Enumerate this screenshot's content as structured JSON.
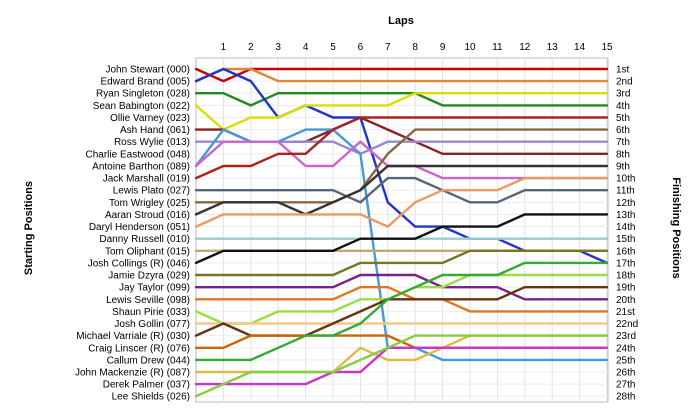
{
  "chart_data": {
    "type": "line",
    "title": "",
    "top_axis_label": "Laps",
    "left_axis_label": "Starting Positions",
    "right_axis_label": "Finishing Positions",
    "x": [
      0,
      1,
      2,
      3,
      4,
      5,
      6,
      7,
      8,
      9,
      10,
      11,
      12,
      13,
      14,
      15
    ],
    "x_tick_labels": [
      "1",
      "2",
      "3",
      "4",
      "5",
      "6",
      "7",
      "8",
      "9",
      "10",
      "11",
      "12",
      "13",
      "14",
      "15"
    ],
    "y_inverted": true,
    "ylim": [
      1,
      28
    ],
    "grid": true,
    "start_labels": [
      "John Stewart (000)",
      "Edward Brand (005)",
      "Ryan Singleton (028)",
      "Sean Babington (022)",
      "Ollie Varney (023)",
      "Ash Hand (061)",
      "Ross Wylie (013)",
      "Charlie Eastwood (048)",
      "Antoine Barthon (089)",
      "Jack Marshall (019)",
      "Lewis Plato (027)",
      "Tom Wrigley (025)",
      "Aaran Stroud (016)",
      "Daryl Henderson (051)",
      "Danny Russell (010)",
      "Tom Oliphant (015)",
      "Josh Collings (R) (046)",
      "Jamie Dzyra (029)",
      "Jay Taylor (099)",
      "Lewis Seville (098)",
      "Shaun Pirie (033)",
      "Josh Gollin (077)",
      "Michael Varriale (R) (030)",
      "Craig Linscer (R) (076)",
      "Callum Drew (044)",
      "John Mackenzie (R) (087)",
      "Derek Palmer (037)",
      "Lee Shields (026)"
    ],
    "finish_labels": [
      "1st",
      "2nd",
      "3rd",
      "4th",
      "5th",
      "6th",
      "7th",
      "8th",
      "9th",
      "10th",
      "11th",
      "12th",
      "13th",
      "14th",
      "15th",
      "16th",
      "17th",
      "18th",
      "19th",
      "20th",
      "21st",
      "22nd",
      "23rd",
      "24th",
      "25th",
      "26th",
      "27th",
      "28th"
    ],
    "series": [
      {
        "color": "#cc0000",
        "values": [
          1,
          2,
          1,
          1,
          1,
          1,
          1,
          1,
          1,
          1,
          1,
          1,
          1,
          1,
          1,
          1
        ]
      },
      {
        "color": "#dd8833",
        "values": [
          2,
          1,
          1,
          2,
          2,
          2,
          2,
          2,
          2,
          2,
          2,
          2,
          2,
          2,
          2,
          2
        ]
      },
      {
        "color": "#228822",
        "values": [
          3,
          3,
          4,
          3,
          3,
          3,
          3,
          3,
          3,
          4,
          4,
          4,
          4,
          4,
          4,
          4
        ]
      },
      {
        "color": "#2233cc",
        "values": [
          2,
          1,
          2,
          5,
          4,
          5,
          5,
          12,
          14,
          14,
          15,
          15,
          16,
          16,
          16,
          17
        ]
      },
      {
        "color": "#dddd00",
        "values": [
          4,
          6,
          5,
          5,
          4,
          4,
          4,
          4,
          3,
          3,
          3,
          3,
          3,
          3,
          3,
          3
        ]
      },
      {
        "color": "#882222",
        "values": [
          6,
          6,
          7,
          7,
          7,
          6,
          5,
          6,
          7,
          8,
          8,
          8,
          8,
          8,
          8,
          8
        ]
      },
      {
        "color": "#9988cc",
        "values": [
          7,
          7,
          7,
          7,
          7,
          7,
          8,
          7,
          7,
          7,
          7,
          7,
          7,
          7,
          7,
          7
        ]
      },
      {
        "color": "#4499dd",
        "values": [
          9,
          6,
          7,
          7,
          6,
          6,
          8,
          24,
          24,
          25,
          25,
          25,
          25,
          25,
          25,
          25
        ]
      },
      {
        "color": "#cc66cc",
        "values": [
          9,
          7,
          7,
          7,
          9,
          9,
          7,
          9,
          9,
          10,
          10,
          10,
          10,
          10,
          10,
          10
        ]
      },
      {
        "color": "#aa2222",
        "values": [
          10,
          9,
          9,
          8,
          8,
          6,
          5,
          5,
          5,
          5,
          5,
          5,
          5,
          5,
          5,
          5
        ]
      },
      {
        "color": "#556677",
        "values": [
          11,
          11,
          11,
          11,
          11,
          11,
          12,
          10,
          10,
          11,
          12,
          12,
          11,
          11,
          11,
          11
        ]
      },
      {
        "color": "#886644",
        "values": [
          12,
          12,
          12,
          12,
          12,
          12,
          11,
          8,
          6,
          6,
          6,
          6,
          6,
          6,
          6,
          6
        ]
      },
      {
        "color": "#333333",
        "values": [
          13,
          12,
          12,
          12,
          13,
          12,
          11,
          9,
          9,
          9,
          9,
          9,
          9,
          9,
          9,
          9
        ]
      },
      {
        "color": "#ee9966",
        "values": [
          14,
          13,
          13,
          13,
          13,
          13,
          13,
          14,
          12,
          11,
          11,
          11,
          10,
          10,
          10,
          10
        ]
      },
      {
        "color": "#99cccc",
        "values": [
          15,
          15,
          15,
          15,
          15,
          15,
          15,
          15,
          15,
          15,
          15,
          15,
          15,
          15,
          15,
          15
        ]
      },
      {
        "color": "#bbaa77",
        "values": [
          16,
          16,
          16,
          16,
          16,
          16,
          16,
          16,
          16,
          16,
          16,
          16,
          16,
          16,
          16,
          16
        ]
      },
      {
        "color": "#111111",
        "values": [
          17,
          16,
          16,
          16,
          16,
          16,
          15,
          15,
          15,
          14,
          14,
          14,
          13,
          13,
          13,
          13
        ]
      },
      {
        "color": "#777722",
        "values": [
          18,
          18,
          18,
          18,
          18,
          18,
          17,
          17,
          17,
          17,
          16,
          16,
          16,
          16,
          16,
          16
        ]
      },
      {
        "color": "#772288",
        "values": [
          19,
          19,
          19,
          19,
          19,
          19,
          18,
          18,
          18,
          19,
          19,
          19,
          20,
          20,
          20,
          20
        ]
      },
      {
        "color": "#dd7722",
        "values": [
          20,
          20,
          20,
          20,
          20,
          20,
          19,
          19,
          20,
          20,
          21,
          21,
          21,
          21,
          21,
          21
        ]
      },
      {
        "color": "#99dd44",
        "values": [
          21,
          22,
          22,
          21,
          21,
          21,
          20,
          20,
          19,
          19,
          18,
          18,
          18,
          18,
          18,
          18
        ]
      },
      {
        "color": "#eecc88",
        "values": [
          22,
          22,
          22,
          22,
          22,
          22,
          22,
          22,
          22,
          22,
          22,
          22,
          22,
          22,
          22,
          22
        ]
      },
      {
        "color": "#663311",
        "values": [
          23,
          22,
          23,
          23,
          23,
          22,
          21,
          20,
          20,
          20,
          20,
          20,
          19,
          19,
          19,
          19
        ]
      },
      {
        "color": "#cc6600",
        "values": [
          24,
          24,
          23,
          23,
          23,
          23,
          23,
          23,
          24,
          24,
          24,
          24,
          24,
          24,
          24,
          24
        ]
      },
      {
        "color": "#33aa33",
        "values": [
          25,
          25,
          25,
          24,
          23,
          23,
          22,
          20,
          19,
          18,
          18,
          18,
          17,
          17,
          17,
          17
        ]
      },
      {
        "color": "#ddbb44",
        "values": [
          26,
          26,
          26,
          26,
          26,
          26,
          24,
          25,
          25,
          24,
          23,
          23,
          23,
          23,
          23,
          23
        ]
      },
      {
        "color": "#cc33cc",
        "values": [
          27,
          27,
          27,
          27,
          27,
          26,
          26,
          24,
          24,
          24,
          24,
          24,
          24,
          24,
          24,
          24
        ]
      },
      {
        "color": "#88cc44",
        "values": [
          28,
          27,
          26,
          26,
          26,
          26,
          25,
          24,
          23,
          23,
          23,
          23,
          23,
          23,
          23,
          23
        ]
      }
    ]
  }
}
